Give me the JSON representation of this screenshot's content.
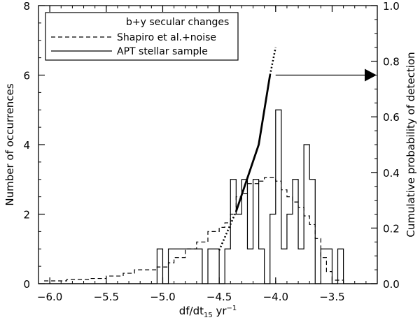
{
  "chart_data": {
    "type": "line",
    "xlabel_main": "df/dt",
    "xlabel_sub": "15",
    "xlabel_rest": " yr",
    "xlabel_sup": "−1",
    "ylabel": "Number of occurrences",
    "y2label": "Cumulative probability of detection",
    "xlim": [
      -6.1,
      -3.1
    ],
    "ylim": [
      0,
      8
    ],
    "y2lim": [
      0,
      1.0
    ],
    "xticks": [
      -6.0,
      -5.5,
      -5.0,
      -4.5,
      -4.0,
      -3.5
    ],
    "xtick_labels": [
      "−6.0",
      "−5.5",
      "−5.0",
      "−4.5",
      "−4.0",
      "−3.5"
    ],
    "yticks": [
      0,
      2,
      4,
      6,
      8
    ],
    "ytick_labels": [
      "0",
      "2",
      "4",
      "6",
      "8"
    ],
    "y2ticks": [
      0,
      0.2,
      0.4,
      0.6,
      0.8,
      1.0
    ],
    "y2tick_labels": [
      "0.0",
      "0.2",
      "0.4",
      "0.6",
      "0.8",
      "1.0"
    ],
    "legend": {
      "title": "b+y secular changes",
      "entries": [
        {
          "label": "Shapiro et al.+noise",
          "style": "dashed"
        },
        {
          "label": "APT stellar sample",
          "style": "solid"
        }
      ]
    },
    "series": [
      {
        "name": "APT stellar sample",
        "style": "histogram",
        "edges": [
          -6.1,
          -5.05,
          -5.0,
          -4.95,
          -4.65,
          -4.6,
          -4.55,
          -4.5,
          -4.45,
          -4.4,
          -4.35,
          -4.3,
          -4.25,
          -4.2,
          -4.15,
          -4.1,
          -4.05,
          -4.0,
          -3.95,
          -3.9,
          -3.85,
          -3.8,
          -3.75,
          -3.7,
          -3.65,
          -3.6,
          -3.55,
          -3.5,
          -3.45,
          -3.4,
          -3.1
        ],
        "counts": [
          0,
          1,
          0,
          1,
          0,
          1,
          1,
          0,
          1,
          3,
          2,
          3,
          1,
          3,
          1,
          0,
          2,
          5,
          1,
          2,
          3,
          1,
          4,
          3,
          0,
          1,
          1,
          0,
          1,
          0
        ]
      },
      {
        "name": "Shapiro et al.+noise",
        "style": "dashed-step",
        "points": [
          [
            -6.05,
            0.08
          ],
          [
            -5.85,
            0.12
          ],
          [
            -5.65,
            0.15
          ],
          [
            -5.5,
            0.22
          ],
          [
            -5.35,
            0.3
          ],
          [
            -5.25,
            0.4
          ],
          [
            -5.05,
            0.48
          ],
          [
            -4.95,
            0.6
          ],
          [
            -4.9,
            0.75
          ],
          [
            -4.8,
            1.0
          ],
          [
            -4.7,
            1.2
          ],
          [
            -4.6,
            1.5
          ],
          [
            -4.5,
            1.62
          ],
          [
            -4.45,
            1.75
          ],
          [
            -4.4,
            2.0
          ],
          [
            -4.35,
            2.5
          ],
          [
            -4.3,
            2.6
          ],
          [
            -4.25,
            2.88
          ],
          [
            -4.15,
            2.95
          ],
          [
            -4.1,
            3.05
          ],
          [
            -4.0,
            2.95
          ],
          [
            -3.95,
            2.7
          ],
          [
            -3.9,
            2.5
          ],
          [
            -3.85,
            2.35
          ],
          [
            -3.8,
            2.2
          ],
          [
            -3.75,
            1.95
          ],
          [
            -3.7,
            1.7
          ],
          [
            -3.65,
            1.3
          ],
          [
            -3.6,
            0.75
          ],
          [
            -3.55,
            0.35
          ],
          [
            -3.5,
            0.1
          ],
          [
            -3.4,
            0.0
          ]
        ]
      },
      {
        "name": "cumulative detection probability",
        "axis": "y2",
        "solid": [
          [
            -4.35,
            0.26
          ],
          [
            -4.15,
            0.5
          ],
          [
            -4.05,
            0.75
          ]
        ],
        "dotted_low": [
          [
            -4.5,
            0.12
          ],
          [
            -4.35,
            0.26
          ]
        ],
        "dotted_high": [
          [
            -4.05,
            0.75
          ],
          [
            -4.0,
            0.85
          ]
        ]
      }
    ],
    "annotation": {
      "type": "arrow",
      "from": [
        -4.05,
        0.75
      ],
      "to": [
        -3.1,
        0.75
      ],
      "direction": "right"
    }
  }
}
